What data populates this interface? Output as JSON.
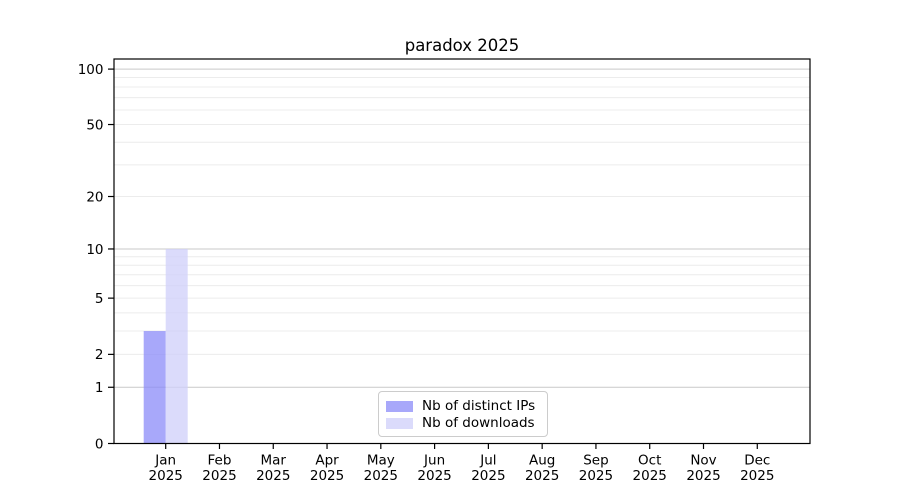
{
  "title": "paradox 2025",
  "chart_data": {
    "type": "bar",
    "title": "paradox 2025",
    "x_axis": {
      "categories": [
        "Jan",
        "Feb",
        "Mar",
        "Apr",
        "May",
        "Jun",
        "Jul",
        "Aug",
        "Sep",
        "Oct",
        "Nov",
        "Dec"
      ],
      "year_label": "2025"
    },
    "y_axis": {
      "scale": "log(value+1)",
      "ticks": [
        0,
        1,
        2,
        5,
        10,
        20,
        50,
        100
      ],
      "range": [
        0,
        113
      ]
    },
    "series": [
      {
        "name": "Nb of distinct IPs",
        "color": "#8b8bf8",
        "values": [
          3,
          0,
          0,
          0,
          0,
          0,
          0,
          0,
          0,
          0,
          0,
          0
        ]
      },
      {
        "name": "Nb of downloads",
        "color": "#cfcffa",
        "values": [
          10,
          0,
          0,
          0,
          0,
          0,
          0,
          0,
          0,
          0,
          0,
          0
        ]
      }
    ],
    "bar_opacity": 0.75,
    "grid": {
      "major_values": [
        1,
        10,
        100
      ],
      "minor_values": [
        2,
        3,
        4,
        5,
        6,
        7,
        8,
        9,
        20,
        30,
        40,
        50,
        60,
        70,
        80,
        90
      ],
      "major_color": "#c9c9c9",
      "minor_color": "#ececec"
    },
    "legend_position": "lower center",
    "axis_color": "#000000",
    "tick_label_color": "#000000"
  }
}
